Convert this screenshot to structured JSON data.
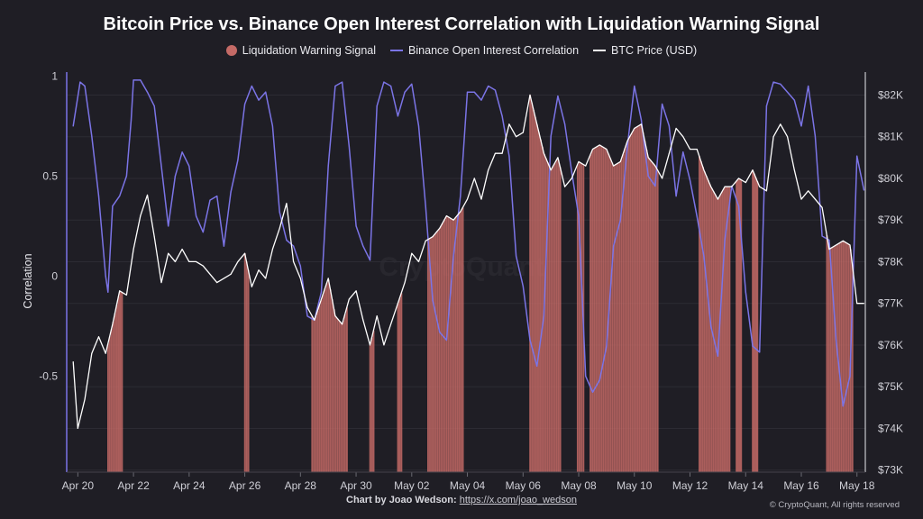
{
  "chart_data": {
    "type": "line",
    "title": "Bitcoin Price vs. Binance Open Interest Correlation with Liquidation Warning Signal",
    "legend": {
      "placement": "top-center",
      "entries": [
        "Liquidation Warning Signal",
        "Binance Open Interest Correlation",
        "BTC Price (USD)"
      ]
    },
    "colors": {
      "signal": "#c46a66",
      "correlation": "#7b74e6",
      "price": "#ffffff",
      "background": "#1f1e25",
      "grid": "#2c2b33"
    },
    "x_tick_labels": [
      "Apr 20",
      "Apr 22",
      "Apr 24",
      "Apr 26",
      "Apr 28",
      "Apr 30",
      "May 02",
      "May 04",
      "May 06",
      "May 08",
      "May 10",
      "May 12",
      "May 14",
      "May 16",
      "May 18"
    ],
    "x_range_days": [
      19.6,
      18.3
    ],
    "left_axis": {
      "label": "Correlation",
      "ticks": [
        {
          "v": 1,
          "t": "1"
        },
        {
          "v": 0.5,
          "t": "0.5"
        },
        {
          "v": 0,
          "t": "0"
        },
        {
          "v": -0.5,
          "t": "-0.5"
        }
      ],
      "ylim": [
        -0.98,
        1.02
      ]
    },
    "right_axis": {
      "label": "",
      "ticks": [
        {
          "v": 82000,
          "t": "$82K"
        },
        {
          "v": 81000,
          "t": "$81K"
        },
        {
          "v": 80000,
          "t": "$80K"
        },
        {
          "v": 79000,
          "t": "$79K"
        },
        {
          "v": 78000,
          "t": "$78K"
        },
        {
          "v": 77000,
          "t": "$77K"
        },
        {
          "v": 76000,
          "t": "$76K"
        },
        {
          "v": 75000,
          "t": "$75K"
        },
        {
          "v": 74000,
          "t": "$74K"
        },
        {
          "v": 73000,
          "t": "$73K"
        }
      ],
      "ylim": [
        72950,
        82550
      ]
    },
    "grid": true,
    "series": [
      {
        "name": "Binance Open Interest Correlation",
        "axis": "left",
        "x": [
          "Apr 19 20:00",
          "Apr 20 02:00",
          "Apr 20 06:00",
          "Apr 20 12:00",
          "Apr 20 18:00",
          "Apr 21 00:00",
          "Apr 21 02:00",
          "Apr 21 06:00",
          "Apr 21 12:00",
          "Apr 21 18:00",
          "Apr 21 22:00",
          "Apr 22 00:00",
          "Apr 22 06:00",
          "Apr 22 12:00",
          "Apr 22 18:00",
          "Apr 23 00:00",
          "Apr 23 06:00",
          "Apr 23 12:00",
          "Apr 23 18:00",
          "Apr 24 00:00",
          "Apr 24 06:00",
          "Apr 24 12:00",
          "Apr 24 18:00",
          "Apr 25 00:00",
          "Apr 25 06:00",
          "Apr 25 12:00",
          "Apr 25 18:00",
          "Apr 26 00:00",
          "Apr 26 06:00",
          "Apr 26 12:00",
          "Apr 26 18:00",
          "Apr 27 00:00",
          "Apr 27 06:00",
          "Apr 27 12:00",
          "Apr 27 18:00",
          "Apr 28 00:00",
          "Apr 28 06:00",
          "Apr 28 12:00",
          "Apr 28 18:00",
          "Apr 29 00:00",
          "Apr 29 06:00",
          "Apr 29 12:00",
          "Apr 29 18:00",
          "Apr 30 00:00",
          "Apr 30 06:00",
          "Apr 30 12:00",
          "Apr 30 18:00",
          "May 01 00:00",
          "May 01 06:00",
          "May 01 12:00",
          "May 01 18:00",
          "May 02 00:00",
          "May 02 06:00",
          "May 02 12:00",
          "May 02 18:00",
          "May 03 00:00",
          "May 03 06:00",
          "May 03 12:00",
          "May 03 18:00",
          "May 04 00:00",
          "May 04 06:00",
          "May 04 12:00",
          "May 04 18:00",
          "May 05 00:00",
          "May 05 06:00",
          "May 05 12:00",
          "May 05 18:00",
          "May 06 00:00",
          "May 06 06:00",
          "May 06 12:00",
          "May 06 18:00",
          "May 07 00:00",
          "May 07 06:00",
          "May 07 12:00",
          "May 07 18:00",
          "May 08 00:00",
          "May 08 06:00",
          "May 08 12:00",
          "May 08 18:00",
          "May 09 00:00",
          "May 09 06:00",
          "May 09 12:00",
          "May 09 18:00",
          "May 10 00:00",
          "May 10 06:00",
          "May 10 12:00",
          "May 10 18:00",
          "May 11 00:00",
          "May 11 06:00",
          "May 11 12:00",
          "May 11 18:00",
          "May 12 00:00",
          "May 12 06:00",
          "May 12 12:00",
          "May 12 18:00",
          "May 13 00:00",
          "May 13 06:00",
          "May 13 12:00",
          "May 13 18:00",
          "May 14 00:00",
          "May 14 06:00",
          "May 14 12:00",
          "May 14 18:00",
          "May 15 00:00",
          "May 15 06:00",
          "May 15 12:00",
          "May 15 18:00",
          "May 16 00:00",
          "May 16 06:00",
          "May 16 12:00",
          "May 16 18:00",
          "May 17 00:00",
          "May 17 06:00",
          "May 17 12:00",
          "May 17 18:00",
          "May 18 00:00",
          "May 18 06:00"
        ],
        "values": [
          0.75,
          0.97,
          0.95,
          0.7,
          0.4,
          0.0,
          -0.08,
          0.35,
          0.4,
          0.5,
          0.78,
          0.98,
          0.98,
          0.92,
          0.85,
          0.55,
          0.25,
          0.5,
          0.62,
          0.55,
          0.3,
          0.22,
          0.38,
          0.4,
          0.15,
          0.42,
          0.58,
          0.86,
          0.95,
          0.88,
          0.92,
          0.75,
          0.32,
          0.18,
          0.15,
          0.05,
          -0.2,
          -0.22,
          -0.08,
          0.55,
          0.95,
          0.97,
          0.65,
          0.25,
          0.15,
          0.08,
          0.85,
          0.97,
          0.95,
          0.8,
          0.92,
          0.96,
          0.75,
          0.35,
          -0.12,
          -0.28,
          -0.32,
          0.1,
          0.4,
          0.92,
          0.92,
          0.88,
          0.95,
          0.93,
          0.8,
          0.6,
          0.1,
          -0.05,
          -0.32,
          -0.45,
          -0.2,
          0.7,
          0.9,
          0.76,
          0.52,
          0.3,
          -0.5,
          -0.58,
          -0.52,
          -0.35,
          0.15,
          0.28,
          0.65,
          0.95,
          0.78,
          0.5,
          0.45,
          0.86,
          0.75,
          0.4,
          0.62,
          0.48,
          0.3,
          0.1,
          -0.25,
          -0.4,
          0.18,
          0.45,
          0.35,
          -0.08,
          -0.35,
          -0.38,
          0.85,
          0.97,
          0.96,
          0.92,
          0.88,
          0.75,
          0.95,
          0.7,
          0.2,
          0.18,
          -0.32,
          -0.65,
          -0.5,
          0.6,
          0.43
        ]
      },
      {
        "name": "BTC Price (USD)",
        "axis": "right",
        "x": [
          "Apr 19 20:00",
          "Apr 20 00:00",
          "Apr 20 06:00",
          "Apr 20 12:00",
          "Apr 20 18:00",
          "Apr 21 00:00",
          "Apr 21 06:00",
          "Apr 21 12:00",
          "Apr 21 18:00",
          "Apr 22 00:00",
          "Apr 22 06:00",
          "Apr 22 12:00",
          "Apr 22 18:00",
          "Apr 23 00:00",
          "Apr 23 06:00",
          "Apr 23 12:00",
          "Apr 23 18:00",
          "Apr 24 00:00",
          "Apr 24 06:00",
          "Apr 24 12:00",
          "Apr 24 18:00",
          "Apr 25 00:00",
          "Apr 25 06:00",
          "Apr 25 12:00",
          "Apr 25 18:00",
          "Apr 26 00:00",
          "Apr 26 06:00",
          "Apr 26 12:00",
          "Apr 26 18:00",
          "Apr 27 00:00",
          "Apr 27 06:00",
          "Apr 27 12:00",
          "Apr 27 18:00",
          "Apr 28 00:00",
          "Apr 28 06:00",
          "Apr 28 12:00",
          "Apr 28 18:00",
          "Apr 29 00:00",
          "Apr 29 06:00",
          "Apr 29 12:00",
          "Apr 29 18:00",
          "Apr 30 00:00",
          "Apr 30 06:00",
          "Apr 30 12:00",
          "Apr 30 18:00",
          "May 01 00:00",
          "May 01 06:00",
          "May 01 12:00",
          "May 01 18:00",
          "May 02 00:00",
          "May 02 06:00",
          "May 02 12:00",
          "May 02 18:00",
          "May 03 00:00",
          "May 03 06:00",
          "May 03 12:00",
          "May 03 18:00",
          "May 04 00:00",
          "May 04 06:00",
          "May 04 12:00",
          "May 04 18:00",
          "May 05 00:00",
          "May 05 06:00",
          "May 05 12:00",
          "May 05 18:00",
          "May 06 00:00",
          "May 06 06:00",
          "May 06 12:00",
          "May 06 18:00",
          "May 07 00:00",
          "May 07 06:00",
          "May 07 12:00",
          "May 07 18:00",
          "May 08 00:00",
          "May 08 06:00",
          "May 08 12:00",
          "May 08 18:00",
          "May 09 00:00",
          "May 09 06:00",
          "May 09 12:00",
          "May 09 18:00",
          "May 10 00:00",
          "May 10 06:00",
          "May 10 12:00",
          "May 10 18:00",
          "May 11 00:00",
          "May 11 06:00",
          "May 11 12:00",
          "May 11 18:00",
          "May 12 00:00",
          "May 12 06:00",
          "May 12 12:00",
          "May 12 18:00",
          "May 13 00:00",
          "May 13 06:00",
          "May 13 12:00",
          "May 13 18:00",
          "May 14 00:00",
          "May 14 06:00",
          "May 14 12:00",
          "May 14 18:00",
          "May 15 00:00",
          "May 15 06:00",
          "May 15 12:00",
          "May 15 18:00",
          "May 16 00:00",
          "May 16 06:00",
          "May 16 12:00",
          "May 16 18:00",
          "May 17 00:00",
          "May 17 06:00",
          "May 17 12:00",
          "May 17 18:00",
          "May 18 00:00",
          "May 18 06:00"
        ],
        "values": [
          75600,
          74000,
          74700,
          75800,
          76200,
          75800,
          76500,
          77300,
          77200,
          78300,
          79100,
          79600,
          78600,
          77500,
          78200,
          78000,
          78300,
          78000,
          78000,
          77900,
          77700,
          77500,
          77600,
          77700,
          78000,
          78200,
          77400,
          77800,
          77600,
          78300,
          78800,
          79400,
          78000,
          77600,
          76900,
          76600,
          77100,
          77600,
          76700,
          76500,
          77100,
          77300,
          76600,
          76000,
          76700,
          76000,
          76500,
          77000,
          77500,
          78200,
          78000,
          78500,
          78600,
          78800,
          79100,
          79000,
          79200,
          79500,
          80000,
          79500,
          80200,
          80600,
          80600,
          81300,
          81000,
          81100,
          82000,
          81300,
          80600,
          80200,
          80500,
          79800,
          80000,
          80400,
          80300,
          80700,
          80800,
          80700,
          80300,
          80400,
          80900,
          81200,
          81300,
          80500,
          80300,
          80000,
          80600,
          81200,
          81000,
          80700,
          80700,
          80200,
          79800,
          79500,
          79800,
          79800,
          80000,
          79900,
          80200,
          79800,
          79700,
          81000,
          81300,
          81000,
          80200,
          79500,
          79700,
          79500,
          79300,
          78300,
          78400,
          78500,
          78400,
          77000,
          77000
        ]
      }
    ],
    "warning_signal": {
      "name": "Liquidation Warning Signal",
      "periods": [
        [
          "Apr 21 02:00",
          "Apr 21 14:00"
        ],
        [
          "Apr 26 00:00",
          "Apr 26 03:00"
        ],
        [
          "Apr 28 10:00",
          "Apr 29 16:00"
        ],
        [
          "Apr 30 12:00",
          "Apr 30 15:00"
        ],
        [
          "May 01 12:00",
          "May 01 15:00"
        ],
        [
          "May 02 14:00",
          "May 03 20:00"
        ],
        [
          "May 06 06:00",
          "May 07 08:00"
        ],
        [
          "May 07 23:00",
          "May 08 04:00"
        ],
        [
          "May 08 10:00",
          "May 10 20:00"
        ],
        [
          "May 12 08:00",
          "May 13 10:00"
        ],
        [
          "May 13 16:00",
          "May 13 20:00"
        ],
        [
          "May 14 06:00",
          "May 14 10:00"
        ],
        [
          "May 16 22:00",
          "May 17 20:00"
        ]
      ]
    }
  },
  "labels": {
    "watermark": "CryptoQuant",
    "credit_prefix": "Chart by Joao Wedson:",
    "credit_link": "https://x.com/joao_wedson",
    "copyright": "© CryptoQuant, All rights reserved"
  }
}
